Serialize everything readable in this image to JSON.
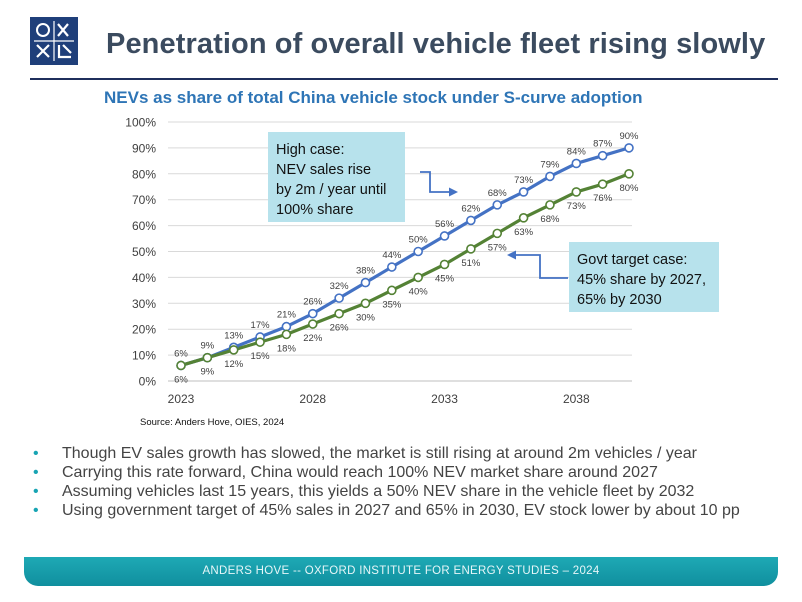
{
  "slide": {
    "title": "Penetration of overall vehicle fleet rising slowly",
    "logo_icon": "oies-logo-icon",
    "footer": "ANDERS HOVE -- OXFORD INSTITUTE FOR ENERGY STUDIES – 2024"
  },
  "colors": {
    "title": "#3b4b5f",
    "chart_title": "#2e75b6",
    "high_case": "#4472c4",
    "govt_case": "#548235",
    "callout_bg": "#b7e2ec",
    "footer": "#17a4b3"
  },
  "chart_data": {
    "type": "line",
    "title": "NEVs as share of total China vehicle stock under S-curve adoption",
    "xlabel": "",
    "ylabel": "",
    "x": [
      2023,
      2024,
      2025,
      2026,
      2027,
      2028,
      2029,
      2030,
      2031,
      2032,
      2033,
      2034,
      2035,
      2036,
      2037,
      2038,
      2039,
      2040
    ],
    "x_ticks": [
      "2023",
      "2028",
      "2033",
      "2038"
    ],
    "y_ticks": [
      "0%",
      "10%",
      "20%",
      "30%",
      "40%",
      "50%",
      "60%",
      "70%",
      "80%",
      "90%",
      "100%"
    ],
    "ylim": [
      0,
      100
    ],
    "grid": true,
    "series": [
      {
        "name": "High case",
        "values": [
          6,
          9,
          13,
          17,
          21,
          26,
          32,
          38,
          44,
          50,
          56,
          62,
          68,
          73,
          79,
          84,
          87,
          90
        ],
        "labels": [
          "6%",
          "9%",
          "13%",
          "17%",
          "21%",
          "26%",
          "32%",
          "38%",
          "44%",
          "50%",
          "56%",
          "62%",
          "68%",
          "73%",
          "79%",
          "84%",
          "87%",
          "90%"
        ],
        "label_position": "above"
      },
      {
        "name": "Govt target case",
        "values": [
          6,
          9,
          12,
          15,
          18,
          22,
          26,
          30,
          35,
          40,
          45,
          51,
          57,
          63,
          68,
          73,
          76,
          80
        ],
        "labels": [
          "6%",
          "9%",
          "12%",
          "15%",
          "18%",
          "22%",
          "26%",
          "30%",
          "35%",
          "40%",
          "45%",
          "51%",
          "57%",
          "63%",
          "68%",
          "73%",
          "76%",
          "80%"
        ],
        "label_position": "below"
      }
    ],
    "annotations": {
      "high_case_lines": [
        "High case:",
        "NEV sales rise",
        "by 2m / year until",
        "100% share"
      ],
      "govt_case_lines": [
        "Govt target case:",
        "45% share by 2027,",
        "65% by 2030"
      ]
    },
    "source": "Source: Anders Hove, OIES, 2024"
  },
  "bullets": [
    "Though EV sales growth has slowed, the market is still rising at around 2m vehicles / year",
    "Carrying this rate forward, China would reach 100% NEV market share around 2027",
    "Assuming vehicles last 15 years, this yields a 50% NEV share in the vehicle fleet by 2032",
    "Using government target of 45% sales in 2027 and 65% in 2030, EV stock lower by about 10 pp"
  ],
  "bullet_marker": "•"
}
